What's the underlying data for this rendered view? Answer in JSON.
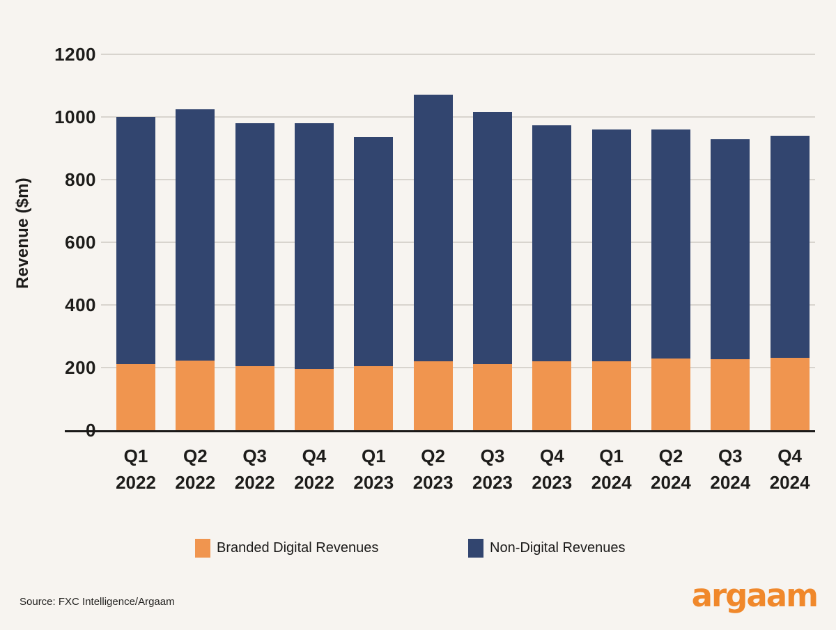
{
  "page": {
    "background": "#F7F4F0"
  },
  "chart_data": {
    "type": "bar",
    "stacked": true,
    "title": "",
    "xlabel": "",
    "ylabel": "Revenue ($m)",
    "ylim": [
      0,
      1200
    ],
    "yticks": [
      0,
      200,
      400,
      600,
      800,
      1000,
      1200
    ],
    "grid": true,
    "legend_position": "bottom",
    "categories": [
      {
        "quarter": "Q1",
        "year": "2022"
      },
      {
        "quarter": "Q2",
        "year": "2022"
      },
      {
        "quarter": "Q3",
        "year": "2022"
      },
      {
        "quarter": "Q4",
        "year": "2022"
      },
      {
        "quarter": "Q1",
        "year": "2023"
      },
      {
        "quarter": "Q2",
        "year": "2023"
      },
      {
        "quarter": "Q3",
        "year": "2023"
      },
      {
        "quarter": "Q4",
        "year": "2023"
      },
      {
        "quarter": "Q1",
        "year": "2024"
      },
      {
        "quarter": "Q2",
        "year": "2024"
      },
      {
        "quarter": "Q3",
        "year": "2024"
      },
      {
        "quarter": "Q4",
        "year": "2024"
      }
    ],
    "series": [
      {
        "name": "Branded Digital Revenues",
        "color": "#F0954F",
        "values": [
          212,
          222,
          204,
          195,
          204,
          220,
          211,
          221,
          219,
          229,
          227,
          232
        ]
      },
      {
        "name": "Non-Digital Revenues",
        "color": "#32456F",
        "values": [
          788,
          803,
          776,
          785,
          731,
          850,
          804,
          754,
          741,
          731,
          703,
          708
        ]
      }
    ]
  },
  "footer": {
    "source": "Source: FXC Intelligence/Argaam",
    "logo_text": "argaam",
    "logo_color": "#F0882B"
  }
}
